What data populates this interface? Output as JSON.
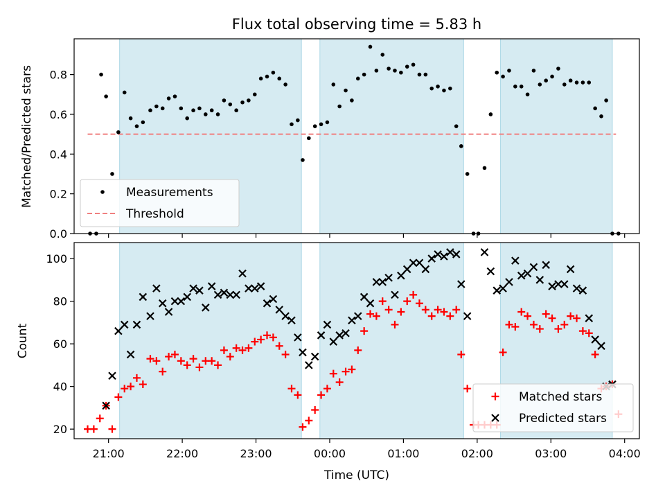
{
  "title": "Flux total observing time = 5.83 h",
  "chart_data": [
    {
      "type": "scatter",
      "ylabel": "Matched/Predicted stars",
      "xlabel": "",
      "xlim": [
        "20:32",
        "04:12"
      ],
      "ylim": [
        0,
        0.98
      ],
      "yticks": [
        0.0,
        0.2,
        0.4,
        0.6,
        0.8
      ],
      "ytick_labels": [
        "0.0",
        "0.2",
        "0.4",
        "0.6",
        "0.8"
      ],
      "grid": false,
      "legend_position": "lower-left",
      "colors": {
        "shade": "#add8e6",
        "measurements": "#000000",
        "threshold": "#f08080"
      },
      "shaded_intervals": [
        [
          "21:09",
          "23:37"
        ],
        [
          "23:52",
          "01:49"
        ],
        [
          "02:19",
          "03:50"
        ]
      ],
      "series": [
        {
          "name": "Measurements",
          "marker": "dot",
          "x": [
            "20:45",
            "20:50",
            "20:54",
            "20:58",
            "21:03",
            "21:08",
            "21:13",
            "21:18",
            "21:23",
            "21:28",
            "21:34",
            "21:39",
            "21:44",
            "21:49",
            "21:54",
            "21:59",
            "22:04",
            "22:09",
            "22:14",
            "22:19",
            "22:24",
            "22:29",
            "22:34",
            "22:39",
            "22:44",
            "22:49",
            "22:54",
            "22:59",
            "23:04",
            "23:09",
            "23:14",
            "23:19",
            "23:24",
            "23:29",
            "23:34",
            "23:38",
            "23:43",
            "23:48",
            "23:53",
            "23:58",
            "00:03",
            "00:08",
            "00:13",
            "00:18",
            "00:23",
            "00:28",
            "00:33",
            "00:38",
            "00:43",
            "00:48",
            "00:53",
            "00:58",
            "01:03",
            "01:08",
            "01:13",
            "01:18",
            "01:23",
            "01:28",
            "01:33",
            "01:38",
            "01:43",
            "01:47",
            "01:52",
            "01:57",
            "02:01",
            "02:06",
            "02:11",
            "02:16",
            "02:21",
            "02:26",
            "02:31",
            "02:36",
            "02:41",
            "02:46",
            "02:51",
            "02:56",
            "03:01",
            "03:06",
            "03:11",
            "03:16",
            "03:21",
            "03:26",
            "03:31",
            "03:36",
            "03:41",
            "03:45",
            "03:50",
            "03:55"
          ],
          "y": [
            0.0,
            0.0,
            0.8,
            0.69,
            0.3,
            0.51,
            0.71,
            0.58,
            0.54,
            0.56,
            0.62,
            0.64,
            0.63,
            0.68,
            0.69,
            0.63,
            0.58,
            0.62,
            0.63,
            0.6,
            0.62,
            0.6,
            0.67,
            0.65,
            0.62,
            0.66,
            0.67,
            0.7,
            0.78,
            0.79,
            0.81,
            0.78,
            0.75,
            0.55,
            0.57,
            0.37,
            0.48,
            0.54,
            0.55,
            0.56,
            0.75,
            0.64,
            0.72,
            0.67,
            0.78,
            0.8,
            0.94,
            0.82,
            0.9,
            0.83,
            0.82,
            0.81,
            0.84,
            0.85,
            0.8,
            0.8,
            0.73,
            0.74,
            0.72,
            0.73,
            0.54,
            0.44,
            0.3,
            0.0,
            0.0,
            0.33,
            0.6,
            0.81,
            0.79,
            0.82,
            0.74,
            0.74,
            0.7,
            0.82,
            0.75,
            0.77,
            0.79,
            0.83,
            0.75,
            0.77,
            0.76,
            0.76,
            0.76,
            0.63,
            0.59,
            0.67,
            0.0,
            0.0
          ]
        },
        {
          "name": "Threshold",
          "style": "dashed",
          "x": [
            "20:43",
            "03:53"
          ],
          "y": [
            0.5,
            0.5
          ]
        }
      ]
    },
    {
      "type": "scatter",
      "ylabel": "Count",
      "xlabel": "Time (UTC)",
      "xlim": [
        "20:32",
        "04:12"
      ],
      "xticks": [
        "21:00",
        "22:00",
        "23:00",
        "00:00",
        "01:00",
        "02:00",
        "03:00",
        "04:00"
      ],
      "ylim": [
        15.5,
        107.5
      ],
      "yticks": [
        20,
        40,
        60,
        80,
        100
      ],
      "grid": false,
      "legend_position": "lower-right",
      "colors": {
        "shade": "#add8e6",
        "matched": "#ff0000",
        "predicted": "#000000"
      },
      "shaded_intervals": [
        [
          "21:09",
          "23:37"
        ],
        [
          "23:52",
          "01:49"
        ],
        [
          "02:19",
          "03:50"
        ]
      ],
      "series": [
        {
          "name": "Matched stars",
          "marker": "plus",
          "x": [
            "20:43",
            "20:48",
            "20:53",
            "20:58",
            "21:03",
            "21:08",
            "21:13",
            "21:18",
            "21:23",
            "21:28",
            "21:34",
            "21:39",
            "21:44",
            "21:49",
            "21:54",
            "21:59",
            "22:04",
            "22:09",
            "22:14",
            "22:19",
            "22:24",
            "22:29",
            "22:34",
            "22:39",
            "22:44",
            "22:49",
            "22:54",
            "22:59",
            "23:04",
            "23:09",
            "23:14",
            "23:19",
            "23:24",
            "23:29",
            "23:34",
            "23:38",
            "23:43",
            "23:48",
            "23:53",
            "23:58",
            "00:03",
            "00:08",
            "00:13",
            "00:18",
            "00:23",
            "00:28",
            "00:33",
            "00:38",
            "00:43",
            "00:48",
            "00:53",
            "00:58",
            "01:03",
            "01:08",
            "01:13",
            "01:18",
            "01:23",
            "01:28",
            "01:33",
            "01:38",
            "01:43",
            "01:47",
            "01:52",
            "01:57",
            "02:01",
            "02:06",
            "02:11",
            "02:16",
            "02:21",
            "02:26",
            "02:31",
            "02:36",
            "02:41",
            "02:46",
            "02:51",
            "02:56",
            "03:01",
            "03:06",
            "03:11",
            "03:16",
            "03:21",
            "03:26",
            "03:31",
            "03:36",
            "03:41",
            "03:45",
            "03:50",
            "03:55"
          ],
          "y": [
            20,
            20,
            25,
            31,
            20,
            35,
            39,
            40,
            44,
            41,
            53,
            52,
            47,
            54,
            55,
            52,
            50,
            53,
            49,
            52,
            52,
            50,
            57,
            54,
            58,
            57,
            58,
            61,
            62,
            64,
            63,
            59,
            55,
            39,
            36,
            21,
            24,
            29,
            36,
            39,
            46,
            42,
            47,
            48,
            57,
            66,
            74,
            73,
            80,
            76,
            69,
            75,
            80,
            83,
            79,
            76,
            73,
            76,
            75,
            73,
            76,
            55,
            39,
            22,
            22,
            22,
            22,
            22,
            56,
            69,
            68,
            75,
            73,
            69,
            67,
            74,
            72,
            67,
            69,
            73,
            72,
            66,
            65,
            55,
            39,
            40,
            41,
            27
          ]
        },
        {
          "name": "Predicted stars",
          "marker": "x",
          "x": [
            "20:58",
            "21:03",
            "21:08",
            "21:13",
            "21:18",
            "21:23",
            "21:28",
            "21:34",
            "21:39",
            "21:44",
            "21:49",
            "21:54",
            "21:59",
            "22:04",
            "22:09",
            "22:14",
            "22:19",
            "22:24",
            "22:29",
            "22:34",
            "22:39",
            "22:44",
            "22:49",
            "22:54",
            "22:59",
            "23:04",
            "23:09",
            "23:14",
            "23:19",
            "23:24",
            "23:29",
            "23:34",
            "23:38",
            "23:43",
            "23:48",
            "23:53",
            "23:58",
            "00:03",
            "00:08",
            "00:13",
            "00:18",
            "00:23",
            "00:28",
            "00:33",
            "00:38",
            "00:43",
            "00:48",
            "00:53",
            "00:58",
            "01:03",
            "01:08",
            "01:13",
            "01:18",
            "01:23",
            "01:28",
            "01:33",
            "01:38",
            "01:43",
            "01:47",
            "01:52",
            "02:06",
            "02:11",
            "02:16",
            "02:21",
            "02:26",
            "02:31",
            "02:36",
            "02:41",
            "02:46",
            "02:51",
            "02:56",
            "03:01",
            "03:06",
            "03:11",
            "03:16",
            "03:21",
            "03:26",
            "03:31",
            "03:36",
            "03:41",
            "03:45",
            "03:50"
          ],
          "y": [
            31,
            45,
            66,
            69,
            55,
            69,
            82,
            73,
            86,
            79,
            75,
            80,
            80,
            82,
            86,
            85,
            77,
            87,
            83,
            84,
            83,
            83,
            93,
            86,
            86,
            87,
            79,
            81,
            76,
            73,
            71,
            63,
            56,
            50,
            54,
            64,
            69,
            61,
            64,
            65,
            71,
            73,
            82,
            79,
            89,
            89,
            91,
            83,
            92,
            95,
            98,
            98,
            95,
            100,
            102,
            101,
            103,
            102,
            88,
            73,
            103,
            94,
            85,
            86,
            89,
            99,
            92,
            93,
            96,
            90,
            97,
            87,
            88,
            88,
            95,
            86,
            85,
            72,
            62,
            59,
            40,
            41
          ]
        }
      ]
    }
  ]
}
